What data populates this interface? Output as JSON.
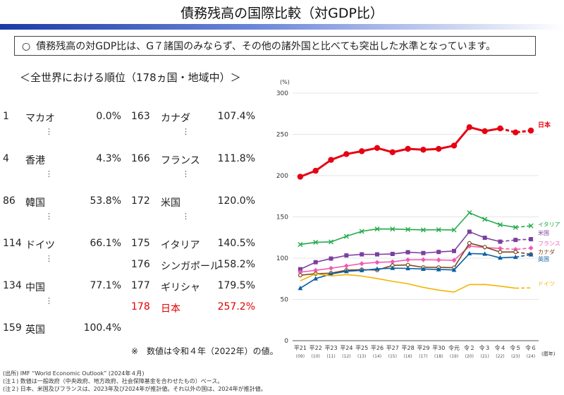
{
  "header": {
    "title": "債務残高の国際比較（対GDP比）",
    "banner_bullet": "○",
    "banner_text": "債務残高の対GDP比は、G７諸国のみならず、その他の諸外国と比べても突出した水準となっています。"
  },
  "ranking": {
    "heading": "＜全世界における順位（178ヵ国・地域中）＞",
    "ellipsis": "⋮",
    "left": [
      {
        "rank": "1",
        "country": "マカオ",
        "value": "0.0%"
      },
      {
        "rank": "4",
        "country": "香港",
        "value": "4.3%"
      },
      {
        "rank": "86",
        "country": "韓国",
        "value": "53.8%"
      },
      {
        "rank": "114",
        "country": "ドイツ",
        "value": "66.1%"
      },
      {
        "rank": "134",
        "country": "中国",
        "value": "77.1%"
      },
      {
        "rank": "159",
        "country": "英国",
        "value": "100.4%"
      }
    ],
    "right": [
      {
        "rank": "163",
        "country": "カナダ",
        "value": "107.4%"
      },
      {
        "rank": "166",
        "country": "フランス",
        "value": "111.8%"
      },
      {
        "rank": "172",
        "country": "米国",
        "value": "120.0%"
      },
      {
        "rank": "175",
        "country": "イタリア",
        "value": "140.5%"
      },
      {
        "rank": "176",
        "country": "シンガポール",
        "value": "158.2%"
      },
      {
        "rank": "177",
        "country": "ギリシャ",
        "value": "179.5%"
      },
      {
        "rank": "178",
        "country": "日本",
        "value": "257.2%"
      }
    ],
    "note": "※　数値は令和４年（2022年）の値。"
  },
  "footnotes": [
    "(出所) IMF “World Economic Outlook” (2024年４月)",
    "(注１) 数値は一般政府（中央政府、地方政府、社会保障基金を合わせたもの）ベース。",
    "(注２) 日本、米国及びフランスは、2023年及び2024年が推計値。それ以外の国は、2024年が推計値。"
  ],
  "chart_data": {
    "type": "line",
    "unit_label": "(%)",
    "x_unit_label": "(暦年)",
    "ylim": [
      0,
      300
    ],
    "yticks": [
      0,
      50,
      100,
      150,
      200,
      250,
      300
    ],
    "categories": [
      "平21",
      "平22",
      "平23",
      "平24",
      "平25",
      "平26",
      "平27",
      "平28",
      "平29",
      "平30",
      "令元",
      "令２",
      "令３",
      "令４",
      "令５",
      "令６"
    ],
    "categories_sub": [
      "(09)",
      "(10)",
      "(11)",
      "(12)",
      "(13)",
      "(14)",
      "(15)",
      "(16)",
      "(17)",
      "(18)",
      "(19)",
      "(20)",
      "(21)",
      "(22)",
      "(23)",
      "(24)"
    ],
    "series": [
      {
        "name": "日本",
        "color": "#e60012",
        "marker": "circle",
        "dashed_from": 14,
        "values": [
          198.7,
          205.9,
          219.1,
          226.1,
          229.6,
          233.5,
          228.4,
          232.5,
          231.4,
          232.4,
          236.4,
          258.7,
          253.9,
          257.2,
          252.4,
          254.6
        ]
      },
      {
        "name": "イタリア",
        "color": "#22aa4a",
        "marker": "x",
        "dashed_from": 15,
        "values": [
          116.6,
          119.2,
          119.7,
          126.5,
          132.5,
          135.4,
          135.3,
          134.8,
          134.2,
          134.4,
          134.2,
          155.0,
          147.1,
          140.5,
          137.3,
          139.2
        ]
      },
      {
        "name": "米国",
        "color": "#7b3f9e",
        "marker": "square",
        "dashed_from": 14,
        "values": [
          86.6,
          95.1,
          99.5,
          103.3,
          104.6,
          104.6,
          105.1,
          107.2,
          106.2,
          107.5,
          108.7,
          132.0,
          124.7,
          120.0,
          122.1,
          123.0
        ]
      },
      {
        "name": "フランス",
        "color": "#f05ab4",
        "marker": "diamond",
        "dashed_from": 14,
        "values": [
          83.0,
          85.3,
          87.8,
          90.6,
          93.4,
          94.9,
          95.6,
          98.0,
          98.1,
          97.8,
          97.4,
          114.6,
          112.9,
          111.8,
          110.6,
          112.3
        ]
      },
      {
        "name": "カナダ",
        "color": "#7a4a1c",
        "marker": "open-circle",
        "dashed_from": 15,
        "values": [
          79.3,
          81.2,
          81.8,
          85.4,
          86.1,
          85.6,
          91.2,
          91.8,
          88.9,
          88.8,
          88.5,
          118.2,
          113.5,
          107.4,
          107.5,
          104.7
        ]
      },
      {
        "name": "英国",
        "color": "#0a5fa8",
        "marker": "triangle",
        "dashed_from": 15,
        "values": [
          63.6,
          75.2,
          80.8,
          84.1,
          85.2,
          87.0,
          87.9,
          87.6,
          86.8,
          86.3,
          85.7,
          105.6,
          105.1,
          100.4,
          101.3,
          104.3
        ]
      },
      {
        "name": "ドイツ",
        "color": "#f5b400",
        "marker": "none",
        "dashed_from": 15,
        "values": [
          72.6,
          81.0,
          78.6,
          80.1,
          78.3,
          75.3,
          71.9,
          69.0,
          64.6,
          61.3,
          58.9,
          68.0,
          68.1,
          66.1,
          63.6,
          64.0
        ]
      }
    ]
  }
}
